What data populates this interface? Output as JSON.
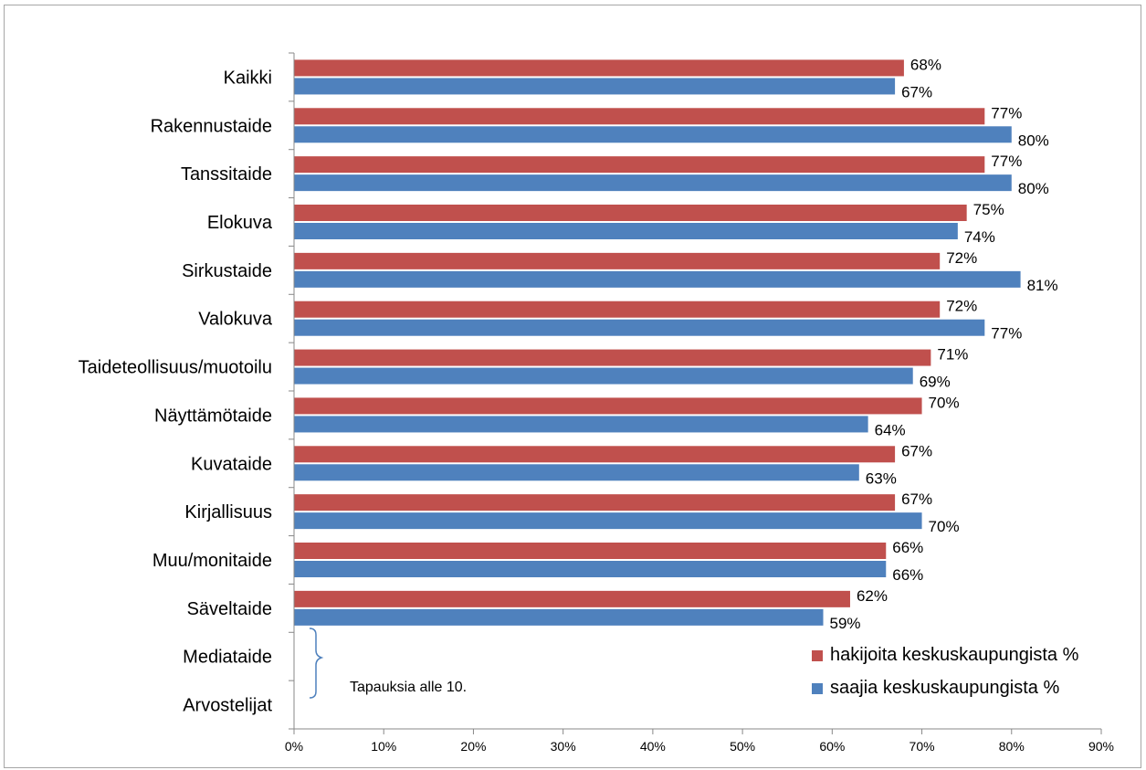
{
  "chart_data": {
    "type": "bar",
    "orientation": "horizontal",
    "categories": [
      "Kaikki",
      "Rakennustaide",
      "Tanssitaide",
      "Elokuva",
      "Sirkustaide",
      "Valokuva",
      "Taideteollisuus/muotoilu",
      "Näyttämötaide",
      "Kuvataide",
      "Kirjallisuus",
      "Muu/monitaide",
      "Säveltaide",
      "Mediataide",
      "Arvostelijat"
    ],
    "series": [
      {
        "name": "hakijoita keskuskaupungista %",
        "color": "#c0504d",
        "values": [
          68,
          77,
          77,
          75,
          72,
          72,
          71,
          70,
          67,
          67,
          66,
          62,
          null,
          null
        ],
        "labels": [
          "68%",
          "77%",
          "77%",
          "75%",
          "72%",
          "72%",
          "71%",
          "70%",
          "67%",
          "67%",
          "66%",
          "62%",
          "",
          ""
        ]
      },
      {
        "name": "saajia keskuskaupungista %",
        "color": "#4f81bd",
        "values": [
          67,
          80,
          80,
          74,
          81,
          77,
          69,
          64,
          63,
          70,
          66,
          59,
          null,
          null
        ],
        "labels": [
          "67%",
          "80%",
          "80%",
          "74%",
          "81%",
          "77%",
          "69%",
          "64%",
          "63%",
          "70%",
          "66%",
          "59%",
          "",
          ""
        ]
      }
    ],
    "xlim": [
      0,
      90
    ],
    "x_ticks": [
      0,
      10,
      20,
      30,
      40,
      50,
      60,
      70,
      80,
      90
    ],
    "x_tick_labels": [
      "0%",
      "10%",
      "20%",
      "30%",
      "40%",
      "50%",
      "60%",
      "70%",
      "80%",
      "90%"
    ],
    "grid": false,
    "legend_position": "bottom-right",
    "annotation": "Tapauksia alle 10.",
    "title": "",
    "xlabel": "",
    "ylabel": ""
  }
}
